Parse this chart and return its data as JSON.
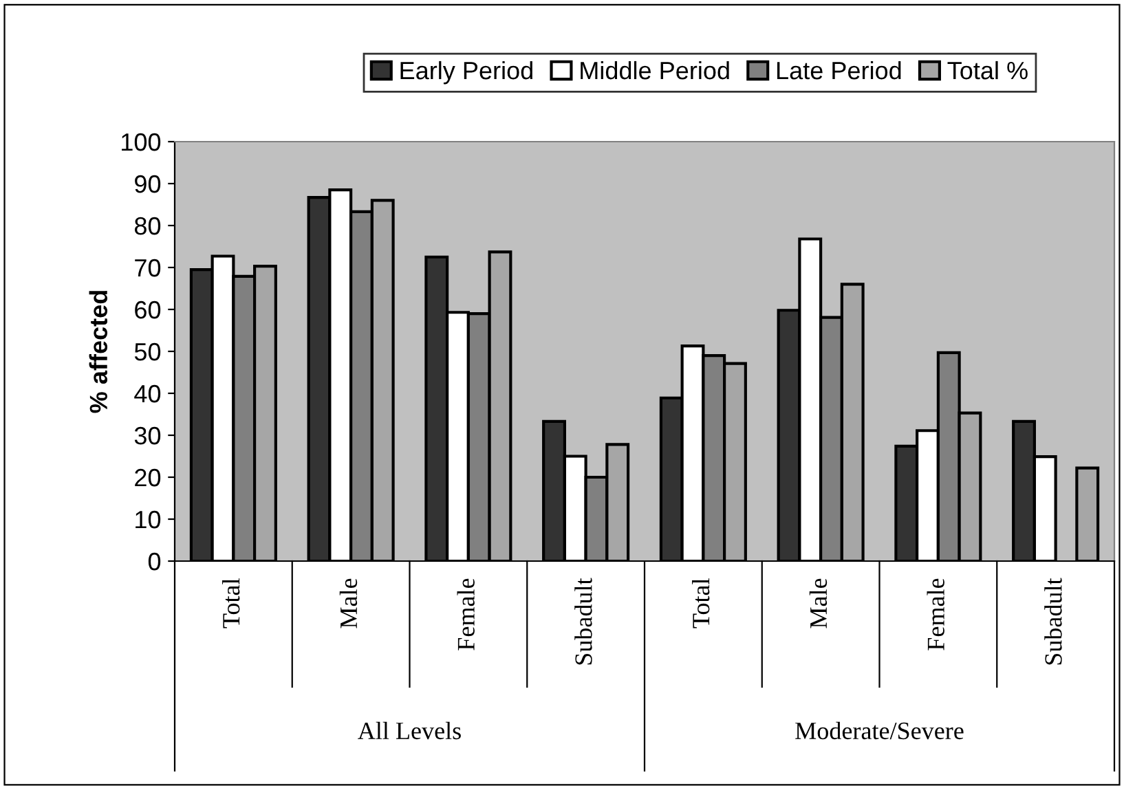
{
  "chart_data": {
    "type": "bar",
    "ylabel": "% affected",
    "categories": [
      "Total",
      "Male",
      "Female",
      "Subadult",
      "Total",
      "Male",
      "Female",
      "Subadult"
    ],
    "annotations": [
      "All Levels",
      "Moderate/Severe"
    ],
    "series": [
      {
        "name": "Early Period",
        "color": "#333333",
        "values": [
          69.5,
          86.7,
          72.5,
          33.3,
          38.9,
          59.8,
          27.4,
          33.3
        ]
      },
      {
        "name": "Middle Period",
        "color": "#ffffff",
        "values": [
          72.7,
          88.5,
          59.3,
          25.0,
          51.3,
          76.8,
          31.1,
          24.9
        ]
      },
      {
        "name": "Late Period",
        "color": "#808080",
        "values": [
          67.9,
          83.3,
          59.0,
          20.0,
          49.0,
          58.1,
          49.7,
          null
        ]
      },
      {
        "name": "Total %",
        "color": "#a6a6a6",
        "values": [
          70.3,
          86.0,
          73.7,
          27.8,
          47.1,
          66.0,
          35.3,
          22.2
        ]
      }
    ],
    "ylim": [
      0,
      100
    ],
    "yticks": [
      0,
      10,
      20,
      30,
      40,
      50,
      60,
      70,
      80,
      90,
      100
    ],
    "grid": false,
    "legend": "top right"
  }
}
